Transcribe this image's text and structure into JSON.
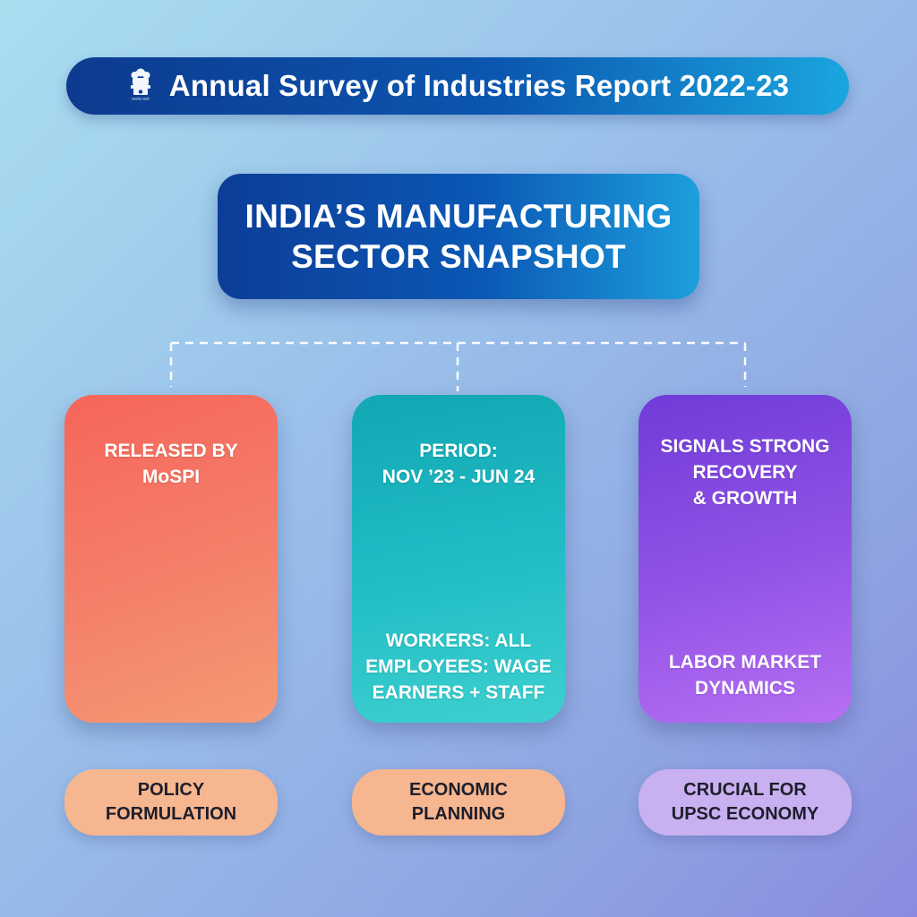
{
  "header": {
    "title": "Annual Survey of Industries Report 2022-23",
    "emblem_icon": "national-emblem-icon",
    "emblem_caption": "सत्यमेव जयते"
  },
  "heading": {
    "line1": "INDIA’S MANUFACTURING",
    "line2": "SECTOR SNAPSHOT"
  },
  "cards": [
    {
      "top": [
        "RELEASED BY",
        "MoSPI"
      ],
      "bottom": []
    },
    {
      "top": [
        "PERIOD:",
        "NOV ’23 - JUN 24"
      ],
      "bottom": [
        "WORKERS: ALL",
        "EMPLOYEES: WAGE",
        "EARNERS + STAFF"
      ]
    },
    {
      "top": [
        "SIGNALS STRONG",
        "RECOVERY",
        "& GROWTH"
      ],
      "bottom": [
        "LABOR MARKET",
        "DYNAMICS"
      ]
    }
  ],
  "pills": [
    [
      "POLICY",
      "FORMULATION"
    ],
    [
      "ECONOMIC",
      "PLANNING"
    ],
    [
      "CRUCIAL FOR",
      "UPSC ECONOMY"
    ]
  ],
  "colors": {
    "banner": "#0b56b0",
    "card_mospi": "#f4806a",
    "card_period": "#22bec6",
    "card_signals": "#9354e6",
    "pill_orange": "#f6b68f",
    "pill_purple": "#c8b0f1"
  }
}
